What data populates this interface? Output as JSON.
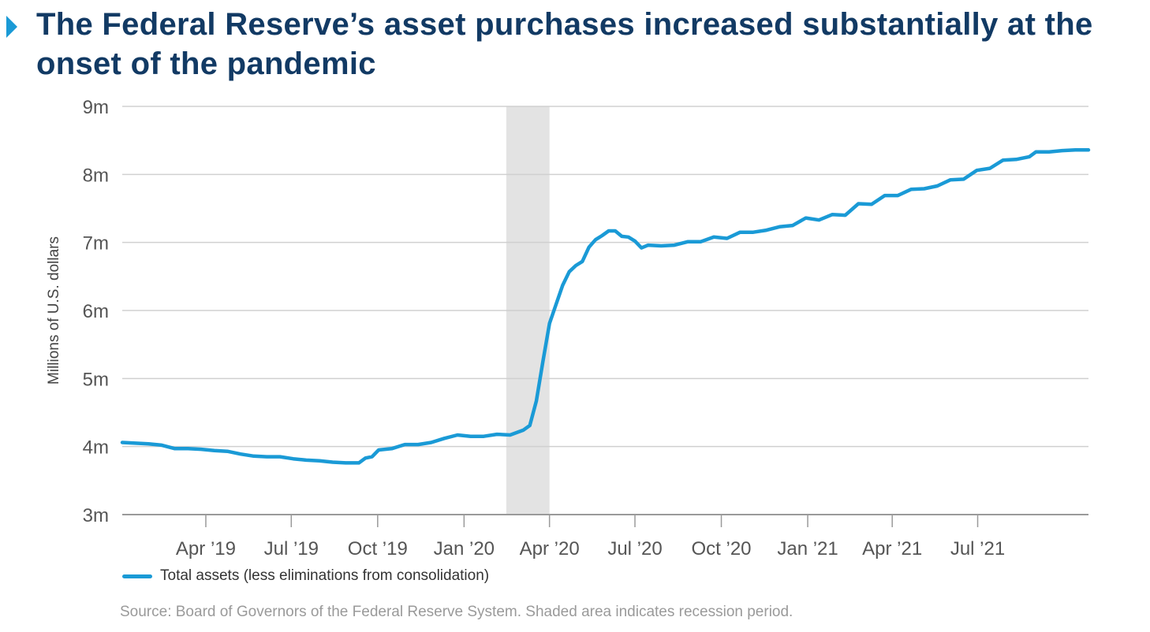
{
  "title": "The Federal Reserve’s asset purchases increased substantially at the onset of the pandemic",
  "source": "Source: Board of Governors of the Federal Reserve System. Shaded area indicates recession period.",
  "chart_data": {
    "type": "line",
    "title": "The Federal Reserve’s asset purchases increased substantially at the onset of the pandemic",
    "xlabel": "",
    "ylabel": "Millions of U.S. dollars",
    "ylim": [
      3,
      9
    ],
    "xlim": [
      "2019-01-02",
      "2021-10-27"
    ],
    "y_ticks": [
      {
        "value": 3,
        "label": "3m"
      },
      {
        "value": 4,
        "label": "4m"
      },
      {
        "value": 5,
        "label": "5m"
      },
      {
        "value": 6,
        "label": "6m"
      },
      {
        "value": 7,
        "label": "7m"
      },
      {
        "value": 8,
        "label": "8m"
      },
      {
        "value": 9,
        "label": "9m"
      }
    ],
    "x_ticks": [
      {
        "date": "2019-04-01",
        "label": "Apr ’19"
      },
      {
        "date": "2019-07-01",
        "label": "Jul ’19"
      },
      {
        "date": "2019-10-01",
        "label": "Oct ’19"
      },
      {
        "date": "2020-01-01",
        "label": "Jan ’20"
      },
      {
        "date": "2020-04-01",
        "label": "Apr ’20"
      },
      {
        "date": "2020-07-01",
        "label": "Jul ’20"
      },
      {
        "date": "2020-10-01",
        "label": "Oct ’20"
      },
      {
        "date": "2021-01-01",
        "label": "Jan ’21"
      },
      {
        "date": "2021-04-01",
        "label": "Apr ’21"
      },
      {
        "date": "2021-07-01",
        "label": "Jul ’21"
      }
    ],
    "grid": true,
    "legend_position": "bottom-left",
    "shaded_regions": [
      {
        "start": "2020-02-15",
        "end": "2020-04-01",
        "label": "recession period",
        "color": "#e3e3e3"
      }
    ],
    "series": [
      {
        "name": "Total assets (less eliminations from consolidation)",
        "color": "#1a9ad6",
        "points": [
          [
            "2019-01-02",
            4.06
          ],
          [
            "2019-01-16",
            4.05
          ],
          [
            "2019-01-30",
            4.04
          ],
          [
            "2019-02-13",
            4.02
          ],
          [
            "2019-02-27",
            3.97
          ],
          [
            "2019-03-13",
            3.97
          ],
          [
            "2019-03-27",
            3.96
          ],
          [
            "2019-04-10",
            3.94
          ],
          [
            "2019-04-24",
            3.93
          ],
          [
            "2019-05-08",
            3.89
          ],
          [
            "2019-05-22",
            3.86
          ],
          [
            "2019-06-05",
            3.85
          ],
          [
            "2019-06-19",
            3.85
          ],
          [
            "2019-07-03",
            3.82
          ],
          [
            "2019-07-17",
            3.8
          ],
          [
            "2019-07-31",
            3.79
          ],
          [
            "2019-08-14",
            3.77
          ],
          [
            "2019-08-28",
            3.76
          ],
          [
            "2019-09-11",
            3.76
          ],
          [
            "2019-09-18",
            3.83
          ],
          [
            "2019-09-25",
            3.85
          ],
          [
            "2019-10-02",
            3.95
          ],
          [
            "2019-10-16",
            3.97
          ],
          [
            "2019-10-30",
            4.03
          ],
          [
            "2019-11-13",
            4.03
          ],
          [
            "2019-11-27",
            4.06
          ],
          [
            "2019-12-11",
            4.12
          ],
          [
            "2019-12-25",
            4.17
          ],
          [
            "2020-01-08",
            4.15
          ],
          [
            "2020-01-22",
            4.15
          ],
          [
            "2020-02-05",
            4.18
          ],
          [
            "2020-02-19",
            4.17
          ],
          [
            "2020-03-04",
            4.24
          ],
          [
            "2020-03-11",
            4.31
          ],
          [
            "2020-03-18",
            4.67
          ],
          [
            "2020-03-25",
            5.25
          ],
          [
            "2020-04-01",
            5.81
          ],
          [
            "2020-04-08",
            6.09
          ],
          [
            "2020-04-15",
            6.37
          ],
          [
            "2020-04-22",
            6.57
          ],
          [
            "2020-04-29",
            6.66
          ],
          [
            "2020-05-06",
            6.72
          ],
          [
            "2020-05-13",
            6.93
          ],
          [
            "2020-05-20",
            7.04
          ],
          [
            "2020-05-27",
            7.1
          ],
          [
            "2020-06-03",
            7.17
          ],
          [
            "2020-06-10",
            7.17
          ],
          [
            "2020-06-17",
            7.09
          ],
          [
            "2020-06-24",
            7.08
          ],
          [
            "2020-07-01",
            7.02
          ],
          [
            "2020-07-08",
            6.92
          ],
          [
            "2020-07-15",
            6.96
          ],
          [
            "2020-07-29",
            6.95
          ],
          [
            "2020-08-12",
            6.96
          ],
          [
            "2020-08-26",
            7.01
          ],
          [
            "2020-09-09",
            7.01
          ],
          [
            "2020-09-23",
            7.08
          ],
          [
            "2020-10-07",
            7.06
          ],
          [
            "2020-10-21",
            7.15
          ],
          [
            "2020-11-04",
            7.15
          ],
          [
            "2020-11-18",
            7.18
          ],
          [
            "2020-12-02",
            7.23
          ],
          [
            "2020-12-16",
            7.25
          ],
          [
            "2020-12-30",
            7.36
          ],
          [
            "2021-01-13",
            7.33
          ],
          [
            "2021-01-27",
            7.41
          ],
          [
            "2021-02-10",
            7.4
          ],
          [
            "2021-02-24",
            7.57
          ],
          [
            "2021-03-10",
            7.56
          ],
          [
            "2021-03-24",
            7.69
          ],
          [
            "2021-04-07",
            7.69
          ],
          [
            "2021-04-21",
            7.78
          ],
          [
            "2021-05-05",
            7.79
          ],
          [
            "2021-05-19",
            7.83
          ],
          [
            "2021-06-02",
            7.92
          ],
          [
            "2021-06-16",
            7.93
          ],
          [
            "2021-06-30",
            8.06
          ],
          [
            "2021-07-14",
            8.09
          ],
          [
            "2021-07-28",
            8.21
          ],
          [
            "2021-08-11",
            8.22
          ],
          [
            "2021-08-25",
            8.26
          ],
          [
            "2021-09-01",
            8.33
          ],
          [
            "2021-09-15",
            8.33
          ],
          [
            "2021-09-29",
            8.35
          ],
          [
            "2021-10-13",
            8.36
          ],
          [
            "2021-10-27",
            8.36
          ]
        ]
      }
    ]
  }
}
